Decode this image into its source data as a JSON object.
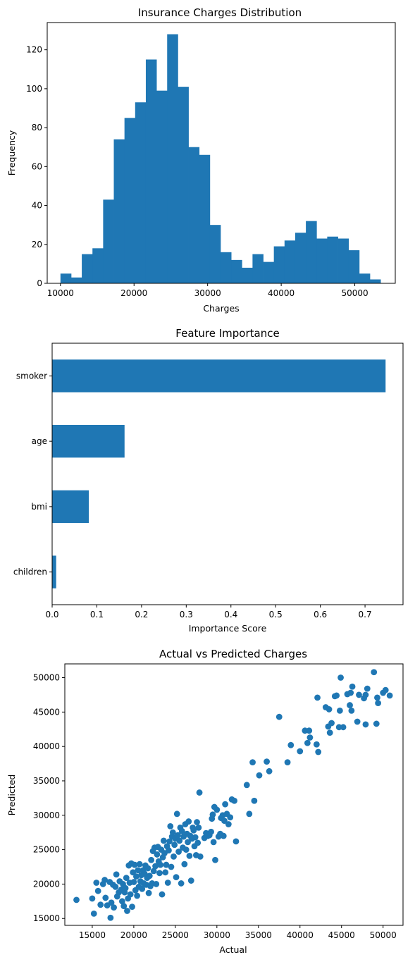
{
  "colors": {
    "bar": "#1f77b4",
    "point": "#1f77b4",
    "axis": "#000000",
    "background": "#ffffff"
  },
  "chart_data": [
    {
      "type": "bar",
      "subtype": "histogram",
      "title": "Insurance Charges Distribution",
      "xlabel": "Charges",
      "ylabel": "Frequency",
      "xlim": [
        8200,
        55500
      ],
      "ylim": [
        0,
        134
      ],
      "xticks": [
        10000,
        20000,
        30000,
        40000,
        50000
      ],
      "yticks": [
        0,
        20,
        40,
        60,
        80,
        100,
        120
      ],
      "bin_edges": [
        10000,
        11450,
        12900,
        14350,
        15800,
        17250,
        18700,
        20150,
        21600,
        23050,
        24500,
        25950,
        27400,
        28850,
        30300,
        31750,
        33200,
        34650,
        36100,
        37550,
        39000,
        40450,
        41900,
        43350,
        44800,
        46250,
        47700,
        49150,
        50600,
        52050,
        53500
      ],
      "values": [
        5,
        3,
        15,
        18,
        43,
        74,
        85,
        93,
        115,
        99,
        128,
        101,
        70,
        66,
        30,
        16,
        12,
        8,
        15,
        11,
        19,
        22,
        26,
        32,
        23,
        24,
        23,
        17,
        5,
        2
      ]
    },
    {
      "type": "bar",
      "orientation": "horizontal",
      "title": "Feature Importance",
      "xlabel": "Importance Score",
      "ylabel": "",
      "xlim": [
        0,
        0.785
      ],
      "xticks": [
        0.0,
        0.1,
        0.2,
        0.3,
        0.4,
        0.5,
        0.6,
        0.7
      ],
      "categories": [
        "smoker",
        "age",
        "bmi",
        "children"
      ],
      "values": [
        0.746,
        0.162,
        0.082,
        0.009
      ]
    },
    {
      "type": "scatter",
      "title": "Actual vs Predicted Charges",
      "xlabel": "Actual",
      "ylabel": "Predicted",
      "xlim": [
        11700,
        52400
      ],
      "ylim": [
        14000,
        52000
      ],
      "xticks": [
        15000,
        20000,
        25000,
        30000,
        35000,
        40000,
        45000,
        50000
      ],
      "yticks": [
        15000,
        20000,
        25000,
        30000,
        35000,
        40000,
        45000,
        50000
      ],
      "points": [
        [
          13100,
          17700
        ],
        [
          15000,
          17900
        ],
        [
          15200,
          15700
        ],
        [
          15500,
          20200
        ],
        [
          15700,
          19000
        ],
        [
          16000,
          17000
        ],
        [
          16300,
          20000
        ],
        [
          16500,
          20600
        ],
        [
          16600,
          18000
        ],
        [
          16800,
          16900
        ],
        [
          17100,
          20300
        ],
        [
          17200,
          15100
        ],
        [
          17300,
          17300
        ],
        [
          17500,
          19900
        ],
        [
          17600,
          16600
        ],
        [
          17800,
          19600
        ],
        [
          17900,
          21400
        ],
        [
          18000,
          18200
        ],
        [
          18200,
          18800
        ],
        [
          18300,
          20400
        ],
        [
          18500,
          19200
        ],
        [
          18600,
          17500
        ],
        [
          18700,
          20000
        ],
        [
          18800,
          16800
        ],
        [
          18900,
          18800
        ],
        [
          19000,
          19400
        ],
        [
          19100,
          20900
        ],
        [
          19200,
          16100
        ],
        [
          19300,
          17900
        ],
        [
          19400,
          22700
        ],
        [
          19500,
          20200
        ],
        [
          19600,
          18500
        ],
        [
          19700,
          23000
        ],
        [
          19800,
          16700
        ],
        [
          19900,
          21700
        ],
        [
          20000,
          20300
        ],
        [
          20100,
          22800
        ],
        [
          20200,
          19100
        ],
        [
          20300,
          21100
        ],
        [
          20400,
          18300
        ],
        [
          20500,
          22000
        ],
        [
          20600,
          19600
        ],
        [
          20700,
          22900
        ],
        [
          20800,
          20400
        ],
        [
          20900,
          21300
        ],
        [
          21000,
          19300
        ],
        [
          21100,
          22000
        ],
        [
          21200,
          20100
        ],
        [
          21300,
          21500
        ],
        [
          21400,
          22700
        ],
        [
          21500,
          19900
        ],
        [
          21600,
          20900
        ],
        [
          21700,
          22300
        ],
        [
          21800,
          18700
        ],
        [
          21900,
          21200
        ],
        [
          22000,
          19700
        ],
        [
          22100,
          23500
        ],
        [
          22200,
          20100
        ],
        [
          22300,
          24800
        ],
        [
          22400,
          21900
        ],
        [
          22500,
          25300
        ],
        [
          22600,
          22600
        ],
        [
          22700,
          20000
        ],
        [
          22800,
          24300
        ],
        [
          22900,
          25400
        ],
        [
          23000,
          23300
        ],
        [
          23100,
          21600
        ],
        [
          23200,
          22800
        ],
        [
          23300,
          25000
        ],
        [
          23400,
          18500
        ],
        [
          23500,
          23900
        ],
        [
          23600,
          26300
        ],
        [
          23700,
          24500
        ],
        [
          23800,
          21700
        ],
        [
          23900,
          22800
        ],
        [
          24000,
          25500
        ],
        [
          24100,
          20200
        ],
        [
          24200,
          24900
        ],
        [
          24300,
          26200
        ],
        [
          24400,
          28400
        ],
        [
          24500,
          22500
        ],
        [
          24600,
          26900
        ],
        [
          24700,
          27500
        ],
        [
          24800,
          24000
        ],
        [
          24900,
          25700
        ],
        [
          25000,
          26600
        ],
        [
          25100,
          21000
        ],
        [
          25200,
          30200
        ],
        [
          25300,
          27100
        ],
        [
          25400,
          24700
        ],
        [
          25500,
          26300
        ],
        [
          25600,
          28200
        ],
        [
          25700,
          20100
        ],
        [
          25800,
          27700
        ],
        [
          25900,
          25300
        ],
        [
          26000,
          26900
        ],
        [
          26100,
          22900
        ],
        [
          26200,
          28700
        ],
        [
          26300,
          25000
        ],
        [
          26400,
          27300
        ],
        [
          26500,
          26100
        ],
        [
          26600,
          29100
        ],
        [
          26700,
          24100
        ],
        [
          26800,
          27000
        ],
        [
          26900,
          20500
        ],
        [
          27000,
          26600
        ],
        [
          27100,
          28200
        ],
        [
          27200,
          27800
        ],
        [
          27300,
          25500
        ],
        [
          27400,
          26800
        ],
        [
          27500,
          24200
        ],
        [
          27600,
          29000
        ],
        [
          27700,
          26000
        ],
        [
          27800,
          28200
        ],
        [
          27900,
          33300
        ],
        [
          28000,
          24000
        ],
        [
          28500,
          26700
        ],
        [
          28700,
          27400
        ],
        [
          28900,
          27000
        ],
        [
          29100,
          27100
        ],
        [
          29300,
          27600
        ],
        [
          29400,
          29500
        ],
        [
          29500,
          30100
        ],
        [
          29600,
          26100
        ],
        [
          29700,
          31200
        ],
        [
          29800,
          23500
        ],
        [
          30000,
          30800
        ],
        [
          30200,
          26900
        ],
        [
          30400,
          27300
        ],
        [
          30500,
          29600
        ],
        [
          30700,
          30000
        ],
        [
          30800,
          27000
        ],
        [
          30900,
          29200
        ],
        [
          31000,
          31600
        ],
        [
          31200,
          30200
        ],
        [
          31400,
          28700
        ],
        [
          31600,
          29700
        ],
        [
          31800,
          32300
        ],
        [
          32100,
          32100
        ],
        [
          32300,
          26200
        ],
        [
          33600,
          34400
        ],
        [
          33900,
          30200
        ],
        [
          34300,
          37700
        ],
        [
          34500,
          32100
        ],
        [
          35100,
          35800
        ],
        [
          36000,
          37800
        ],
        [
          36300,
          36400
        ],
        [
          37500,
          44300
        ],
        [
          38500,
          37700
        ],
        [
          38900,
          40200
        ],
        [
          40000,
          39300
        ],
        [
          40600,
          42300
        ],
        [
          40900,
          40500
        ],
        [
          41100,
          42300
        ],
        [
          41200,
          41300
        ],
        [
          42000,
          40300
        ],
        [
          42100,
          47100
        ],
        [
          42200,
          39200
        ],
        [
          43100,
          45700
        ],
        [
          43400,
          42900
        ],
        [
          43500,
          45400
        ],
        [
          43600,
          42000
        ],
        [
          43800,
          43400
        ],
        [
          44200,
          47300
        ],
        [
          44400,
          47400
        ],
        [
          44700,
          42800
        ],
        [
          44800,
          45200
        ],
        [
          44900,
          50000
        ],
        [
          45200,
          42800
        ],
        [
          45700,
          47600
        ],
        [
          46000,
          46000
        ],
        [
          46100,
          47800
        ],
        [
          46200,
          45200
        ],
        [
          46300,
          48700
        ],
        [
          46900,
          43600
        ],
        [
          47100,
          47500
        ],
        [
          47700,
          47000
        ],
        [
          47900,
          47500
        ],
        [
          47900,
          43200
        ],
        [
          48100,
          48400
        ],
        [
          48900,
          50800
        ],
        [
          49200,
          43300
        ],
        [
          49300,
          47100
        ],
        [
          49400,
          46300
        ],
        [
          50000,
          47800
        ],
        [
          50300,
          48200
        ],
        [
          50800,
          47400
        ]
      ]
    }
  ]
}
